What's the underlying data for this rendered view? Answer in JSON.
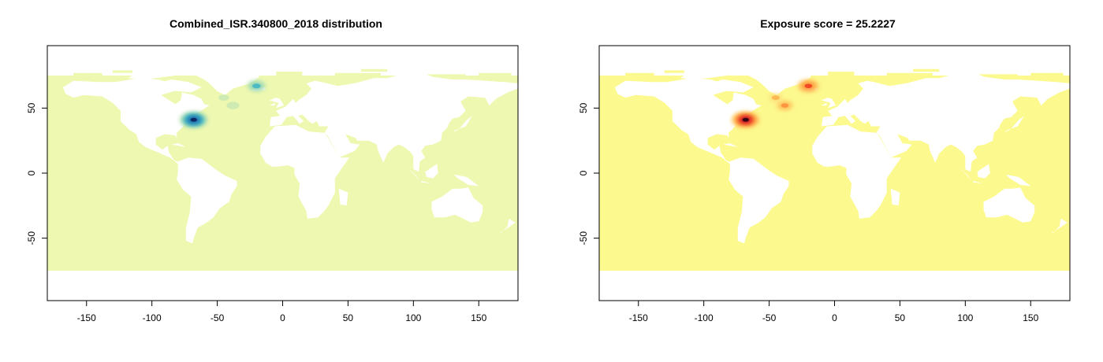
{
  "colors": {
    "left_ocean": "#eef8b0",
    "right_ocean": "#fcf98f",
    "land": "#ffffff",
    "frame": "#000000"
  },
  "panels": [
    {
      "title": "Combined_ISR.340800_2018 distribution",
      "palette": "YlGnBu",
      "hotspot_colors": [
        "#c7e9b4",
        "#7fcdbb",
        "#41b6c4",
        "#1d91c0",
        "#225ea8",
        "#081d58"
      ],
      "xlim": [
        -180,
        180
      ],
      "ylim": [
        -98,
        98
      ],
      "xticks": [
        -150,
        -100,
        -50,
        0,
        50,
        100,
        150
      ],
      "yticks": [
        -50,
        0,
        50
      ],
      "hotspots": [
        {
          "lon": -68,
          "lat": 41,
          "intensity": 1.0
        },
        {
          "lon": -20,
          "lat": 67,
          "intensity": 0.55
        },
        {
          "lon": -38,
          "lat": 52,
          "intensity": 0.22
        },
        {
          "lon": -45,
          "lat": 58,
          "intensity": 0.12
        }
      ]
    },
    {
      "title": "Exposure score = 25.2227",
      "palette": "YlOrRd",
      "hotspot_colors": [
        "#fed976",
        "#feb24c",
        "#fd8d3c",
        "#f03b20",
        "#bd0026",
        "#1a0010"
      ],
      "xlim": [
        -180,
        180
      ],
      "ylim": [
        -98,
        98
      ],
      "xticks": [
        -150,
        -100,
        -50,
        0,
        50,
        100,
        150
      ],
      "yticks": [
        -50,
        0,
        50
      ],
      "hotspots": [
        {
          "lon": -68,
          "lat": 41,
          "intensity": 1.0
        },
        {
          "lon": -20,
          "lat": 67,
          "intensity": 0.7
        },
        {
          "lon": -38,
          "lat": 52,
          "intensity": 0.45
        },
        {
          "lon": -45,
          "lat": 58,
          "intensity": 0.25
        }
      ]
    }
  ]
}
